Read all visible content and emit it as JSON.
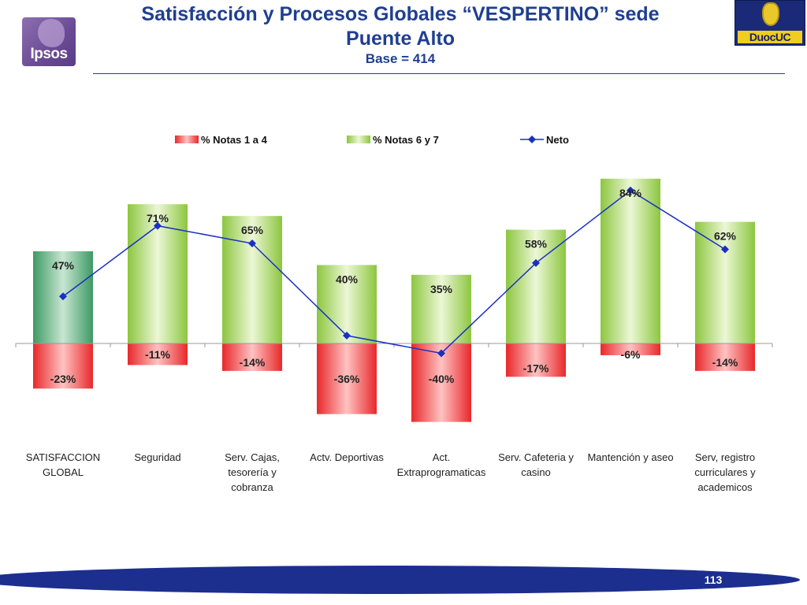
{
  "header": {
    "logo_left": "Ipsos",
    "title_line1": "Satisfacción y Procesos Globales “VESPERTINO” sede",
    "title_line2": "Puente Alto",
    "subtitle": "Base = 414",
    "logo_right": "DuocUC"
  },
  "footer": {
    "page_number": "113"
  },
  "colors": {
    "title": "#1f3f8f",
    "negative_bar": "#e8282a",
    "positive_bar": "#8cc63f",
    "first_positive_bar": "#3d9a63",
    "line": "#1a30c4",
    "footer_band": "#1c2f8f"
  },
  "chart_data": {
    "type": "bar",
    "categories": [
      [
        "SATISFACCION",
        "GLOBAL"
      ],
      [
        "Seguridad"
      ],
      [
        "Serv. Cajas,",
        "tesorería y",
        "cobranza"
      ],
      [
        "Actv. Deportivas"
      ],
      [
        "Act.",
        "Extraprogramaticas"
      ],
      [
        "Serv. Cafeteria y",
        "casino"
      ],
      [
        "Mantención y aseo"
      ],
      [
        "Serv, registro",
        "curriculares y",
        "academicos"
      ]
    ],
    "series": [
      {
        "name": "% Notas 1  a  4",
        "kind": "bar",
        "values": [
          -23,
          -11,
          -14,
          -36,
          -40,
          -17,
          -6,
          -14
        ],
        "labels": [
          "-23%",
          "-11%",
          "-14%",
          "-36%",
          "-40%",
          "-17%",
          "-6%",
          "-14%"
        ]
      },
      {
        "name": "% Notas 6  y  7",
        "kind": "bar",
        "values": [
          47,
          71,
          65,
          40,
          35,
          58,
          84,
          62
        ],
        "labels": [
          "47%",
          "71%",
          "65%",
          "40%",
          "35%",
          "58%",
          "84%",
          "62%"
        ]
      },
      {
        "name": "Neto",
        "kind": "line",
        "values": [
          24,
          60,
          51,
          4,
          -5,
          41,
          78,
          48
        ]
      }
    ],
    "ylim": [
      -42,
      86
    ],
    "legend_position": "top",
    "grid": false
  }
}
